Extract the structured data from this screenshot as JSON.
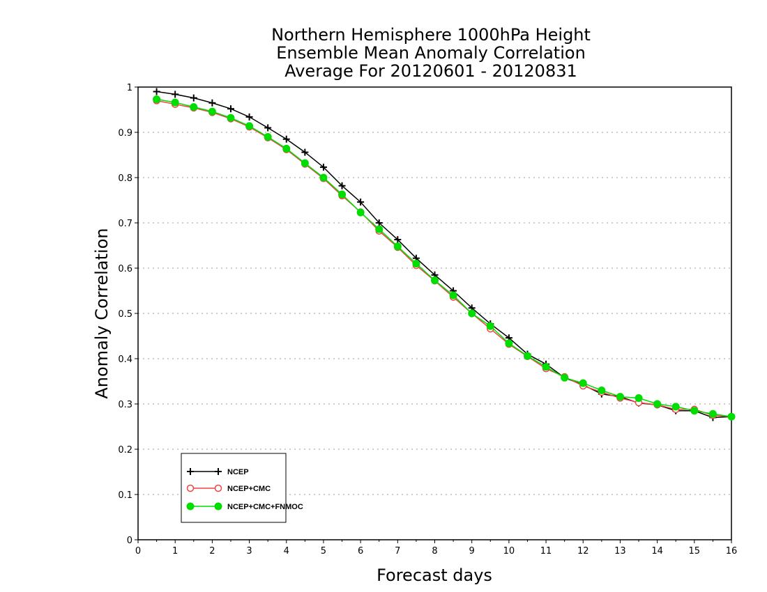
{
  "chart_data": {
    "type": "line",
    "title": [
      "Northern Hemisphere 1000hPa Height",
      "Ensemble Mean Anomaly Correlation",
      "Average For 20120601 - 20120831"
    ],
    "xlabel": "Forecast days",
    "ylabel": "Anomaly Correlation",
    "xlim": [
      0,
      16
    ],
    "ylim": [
      0,
      1
    ],
    "xticks": [
      "0",
      "1",
      "2",
      "3",
      "4",
      "5",
      "6",
      "7",
      "8",
      "9",
      "10",
      "11",
      "12",
      "13",
      "14",
      "15",
      "16"
    ],
    "yticks": [
      "0",
      "0.1",
      "0.2",
      "0.3",
      "0.4",
      "0.5",
      "0.6",
      "0.7",
      "0.8",
      "0.9",
      "1"
    ],
    "grid": "horizontal dotted",
    "legend_position": "bottom-left",
    "x": [
      0.5,
      1,
      1.5,
      2,
      2.5,
      3,
      3.5,
      4,
      4.5,
      5,
      5.5,
      6,
      6.5,
      7,
      7.5,
      8,
      8.5,
      9,
      9.5,
      10,
      10.5,
      11,
      11.5,
      12,
      12.5,
      13,
      13.5,
      14,
      14.5,
      15,
      15.5,
      16
    ],
    "series": [
      {
        "name": "NCEP",
        "color": "#000000",
        "marker": "plus",
        "values": [
          0.99,
          0.984,
          0.976,
          0.965,
          0.952,
          0.934,
          0.91,
          0.885,
          0.856,
          0.823,
          0.782,
          0.746,
          0.7,
          0.663,
          0.622,
          0.585,
          0.55,
          0.512,
          0.477,
          0.446,
          0.41,
          0.388,
          0.358,
          0.342,
          0.322,
          0.316,
          0.302,
          0.298,
          0.285,
          0.285,
          0.27,
          0.272
        ]
      },
      {
        "name": "NCEP+CMC",
        "color": "#ee4444",
        "marker": "open-circle",
        "values": [
          0.97,
          0.962,
          0.954,
          0.944,
          0.93,
          0.912,
          0.888,
          0.862,
          0.83,
          0.798,
          0.76,
          0.724,
          0.682,
          0.646,
          0.606,
          0.572,
          0.536,
          0.5,
          0.466,
          0.432,
          0.405,
          0.378,
          0.36,
          0.34,
          0.326,
          0.313,
          0.303,
          0.298,
          0.288,
          0.288,
          0.275,
          0.272
        ]
      },
      {
        "name": "NCEP+CMC+FNMOC",
        "color": "#00dd00",
        "marker": "filled-circle",
        "values": [
          0.973,
          0.966,
          0.956,
          0.946,
          0.932,
          0.914,
          0.89,
          0.864,
          0.832,
          0.8,
          0.763,
          0.723,
          0.686,
          0.648,
          0.61,
          0.573,
          0.54,
          0.5,
          0.472,
          0.434,
          0.406,
          0.382,
          0.358,
          0.346,
          0.33,
          0.316,
          0.313,
          0.3,
          0.294,
          0.285,
          0.278,
          0.272
        ]
      }
    ]
  }
}
